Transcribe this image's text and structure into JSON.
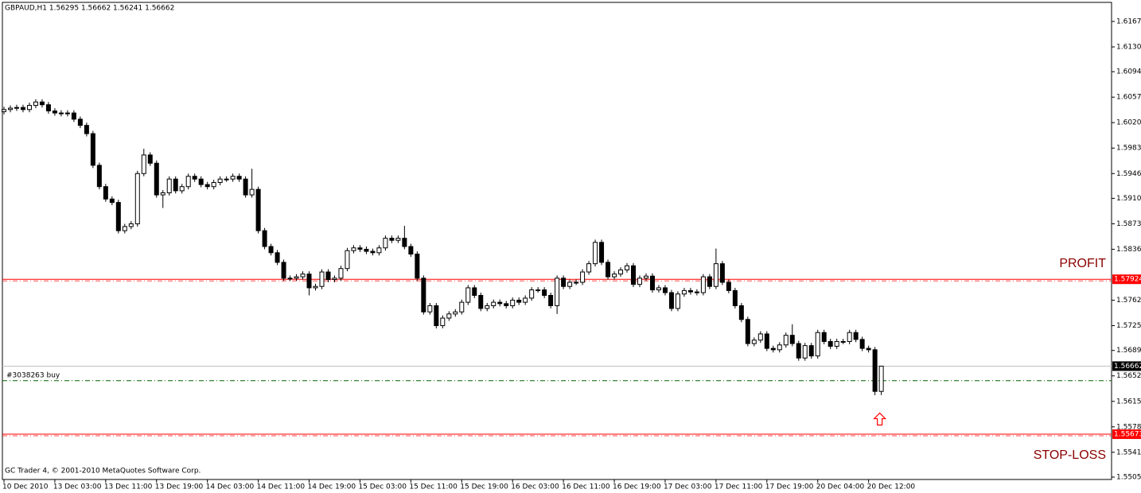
{
  "chart_data": {
    "type": "candlestick",
    "title": "GBPAUD,H1 1.56295 1.56662 1.56241 1.56662",
    "copyright": "GC Trader 4, © 2001-2010 MetaQuotes Software Corp.",
    "up_color": "#ffffff",
    "down_color": "#000000",
    "ylim": [
      1.55015,
      1.61947
    ],
    "yticks": [
      {
        "value": 1.6167,
        "label": "1.61670"
      },
      {
        "value": 1.613,
        "label": "1.61300"
      },
      {
        "value": 1.6094,
        "label": "1.60940"
      },
      {
        "value": 1.6057,
        "label": "1.60570"
      },
      {
        "value": 1.602,
        "label": "1.60200"
      },
      {
        "value": 1.5983,
        "label": "1.59830"
      },
      {
        "value": 1.5946,
        "label": "1.59460"
      },
      {
        "value": 1.591,
        "label": "1.59100"
      },
      {
        "value": 1.5873,
        "label": "1.58730"
      },
      {
        "value": 1.5836,
        "label": "1.58360"
      },
      {
        "value": 1.5762,
        "label": "1.57620"
      },
      {
        "value": 1.5725,
        "label": "1.57250"
      },
      {
        "value": 1.5689,
        "label": "1.56890"
      },
      {
        "value": 1.5652,
        "label": "1.56520"
      },
      {
        "value": 1.5615,
        "label": "1.56150"
      },
      {
        "value": 1.5578,
        "label": "1.55780"
      },
      {
        "value": 1.5541,
        "label": "1.55410"
      },
      {
        "value": 1.5505,
        "label": "1.55050"
      }
    ],
    "categories": [
      "10 Dec 2010",
      null,
      null,
      null,
      null,
      null,
      null,
      null,
      "13 Dec 03:00",
      null,
      null,
      null,
      null,
      null,
      null,
      null,
      "13 Dec 11:00",
      null,
      null,
      null,
      null,
      null,
      null,
      null,
      "13 Dec 19:00",
      null,
      null,
      null,
      null,
      null,
      null,
      null,
      "14 Dec 03:00",
      null,
      null,
      null,
      null,
      null,
      null,
      null,
      "14 Dec 11:00",
      null,
      null,
      null,
      null,
      null,
      null,
      null,
      "14 Dec 19:00",
      null,
      null,
      null,
      null,
      null,
      null,
      null,
      "15 Dec 03:00",
      null,
      null,
      null,
      null,
      null,
      null,
      null,
      "15 Dec 11:00",
      null,
      null,
      null,
      null,
      null,
      null,
      null,
      "15 Dec 19:00",
      null,
      null,
      null,
      null,
      null,
      null,
      null,
      "16 Dec 03:00",
      null,
      null,
      null,
      null,
      null,
      null,
      null,
      "16 Dec 11:00",
      null,
      null,
      null,
      null,
      null,
      null,
      null,
      "16 Dec 19:00",
      null,
      null,
      null,
      null,
      null,
      null,
      null,
      "17 Dec 03:00",
      null,
      null,
      null,
      null,
      null,
      null,
      null,
      "17 Dec 11:00",
      null,
      null,
      null,
      null,
      null,
      null,
      null,
      "17 Dec 19:00",
      null,
      null,
      null,
      null,
      null,
      null,
      null,
      "20 Dec 04:00",
      null,
      null,
      null,
      null,
      null,
      null,
      null,
      "20 Dec 12:00",
      null,
      null
    ],
    "open": [
      1.6036,
      1.6039,
      1.6041,
      1.6042,
      1.6039,
      1.6045,
      1.605,
      1.6046,
      1.6037,
      1.6034,
      1.6033,
      1.6034,
      1.6025,
      1.6016,
      1.6004,
      1.5958,
      1.5927,
      1.5909,
      1.5904,
      1.5863,
      1.5869,
      1.5873,
      1.5946,
      1.5973,
      1.5961,
      1.5915,
      1.5918,
      1.5938,
      1.5921,
      1.5927,
      1.5942,
      1.5938,
      1.593,
      1.5927,
      1.5933,
      1.5938,
      1.5938,
      1.5942,
      1.5938,
      1.5915,
      1.5923,
      1.5863,
      1.584,
      1.5831,
      1.5817,
      1.5794,
      1.5794,
      1.5796,
      1.58,
      1.578,
      1.5782,
      1.5803,
      1.5792,
      1.5794,
      1.5808,
      1.5834,
      1.5838,
      1.5836,
      1.5833,
      1.5831,
      1.5838,
      1.5852,
      1.5849,
      1.5852,
      1.584,
      1.5829,
      1.5794,
      1.5745,
      1.5754,
      1.5725,
      1.5736,
      1.5742,
      1.5745,
      1.5759,
      1.578,
      1.5769,
      1.575,
      1.5754,
      1.5759,
      1.5757,
      1.5754,
      1.5762,
      1.5759,
      1.5765,
      1.5777,
      1.5777,
      1.5769,
      1.5754,
      1.5794,
      1.5782,
      1.5788,
      1.5788,
      1.5803,
      1.5815,
      1.5846,
      1.5817,
      1.5796,
      1.58,
      1.5806,
      1.5812,
      1.5785,
      1.5794,
      1.5797,
      1.5777,
      1.578,
      1.5773,
      1.575,
      1.5771,
      1.5776,
      1.5774,
      1.5773,
      1.5796,
      1.5782,
      1.5815,
      1.5788,
      1.5776,
      1.5754,
      1.5734,
      1.5699,
      1.5704,
      1.5713,
      1.5692,
      1.569,
      1.5697,
      1.5711,
      1.5699,
      1.5678,
      1.5696,
      1.5681,
      1.5715,
      1.5702,
      1.5695,
      1.5702,
      1.5702,
      1.5715,
      1.5705,
      1.5692,
      1.569,
      1.56295
    ],
    "high": [
      1.6043,
      1.6045,
      1.6046,
      1.6046,
      1.6049,
      1.6054,
      1.6054,
      1.605,
      1.6041,
      1.6038,
      1.6038,
      1.6038,
      1.6029,
      1.602,
      1.6008,
      1.5962,
      1.5931,
      1.5913,
      1.5908,
      1.5873,
      1.5877,
      1.595,
      1.5982,
      1.5977,
      1.5965,
      1.5922,
      1.5942,
      1.5942,
      1.5931,
      1.5946,
      1.5946,
      1.5942,
      1.5934,
      1.5937,
      1.5942,
      1.5942,
      1.5946,
      1.5946,
      1.5942,
      1.5953,
      1.5927,
      1.5867,
      1.5844,
      1.5835,
      1.5821,
      1.5798,
      1.58,
      1.5804,
      1.5804,
      1.5786,
      1.5807,
      1.5807,
      1.5798,
      1.5812,
      1.5838,
      1.5842,
      1.5842,
      1.584,
      1.5837,
      1.5842,
      1.5856,
      1.5856,
      1.5856,
      1.587,
      1.5844,
      1.5833,
      1.5798,
      1.5758,
      1.5758,
      1.574,
      1.5746,
      1.5749,
      1.5763,
      1.5784,
      1.5784,
      1.5773,
      1.5758,
      1.5763,
      1.5763,
      1.5761,
      1.5766,
      1.5766,
      1.5769,
      1.5781,
      1.5781,
      1.5781,
      1.5773,
      1.5798,
      1.5798,
      1.5792,
      1.5792,
      1.5807,
      1.5819,
      1.585,
      1.585,
      1.5821,
      1.5804,
      1.581,
      1.5816,
      1.5816,
      1.5798,
      1.5801,
      1.5801,
      1.5784,
      1.5784,
      1.5777,
      1.5775,
      1.578,
      1.578,
      1.5778,
      1.58,
      1.58,
      1.5837,
      1.5819,
      1.5792,
      1.578,
      1.5758,
      1.5738,
      1.5708,
      1.5717,
      1.5717,
      1.5696,
      1.5701,
      1.5715,
      1.5727,
      1.5703,
      1.57,
      1.57,
      1.5719,
      1.5719,
      1.5706,
      1.5706,
      1.5706,
      1.5719,
      1.5719,
      1.5709,
      1.5696,
      1.5694,
      1.56662
    ],
    "low": [
      1.6032,
      1.6035,
      1.6037,
      1.6035,
      1.6035,
      1.6041,
      1.6042,
      1.6033,
      1.603,
      1.6029,
      1.6029,
      1.6021,
      1.6012,
      1.6,
      1.5954,
      1.5923,
      1.5905,
      1.59,
      1.5859,
      1.5859,
      1.5865,
      1.5869,
      1.5942,
      1.5957,
      1.5911,
      1.5896,
      1.5914,
      1.5917,
      1.5917,
      1.5923,
      1.5934,
      1.5926,
      1.5923,
      1.5923,
      1.5929,
      1.5934,
      1.5934,
      1.5934,
      1.5911,
      1.5911,
      1.5859,
      1.5836,
      1.5827,
      1.5813,
      1.579,
      1.579,
      1.579,
      1.5792,
      1.5769,
      1.5776,
      1.5778,
      1.5788,
      1.5788,
      1.579,
      1.5804,
      1.583,
      1.5832,
      1.5829,
      1.5827,
      1.5827,
      1.5834,
      1.5845,
      1.5845,
      1.5836,
      1.5825,
      1.579,
      1.5741,
      1.5741,
      1.5721,
      1.5721,
      1.5732,
      1.5738,
      1.5741,
      1.5755,
      1.5765,
      1.5746,
      1.5746,
      1.575,
      1.5753,
      1.575,
      1.575,
      1.5755,
      1.5755,
      1.5761,
      1.5773,
      1.5765,
      1.575,
      1.5742,
      1.5778,
      1.5778,
      1.5784,
      1.5784,
      1.5799,
      1.5811,
      1.5813,
      1.5792,
      1.5792,
      1.5796,
      1.5802,
      1.5781,
      1.5781,
      1.579,
      1.5773,
      1.5773,
      1.5769,
      1.5746,
      1.5746,
      1.5767,
      1.577,
      1.5769,
      1.5769,
      1.5778,
      1.5778,
      1.5784,
      1.5772,
      1.575,
      1.573,
      1.5695,
      1.5695,
      1.57,
      1.5688,
      1.5686,
      1.5686,
      1.5693,
      1.5695,
      1.5674,
      1.5674,
      1.5677,
      1.5677,
      1.5698,
      1.5691,
      1.5691,
      1.5698,
      1.5698,
      1.5701,
      1.5688,
      1.5686,
      1.5624,
      1.56241
    ],
    "close": [
      1.6039,
      1.6041,
      1.6042,
      1.6039,
      1.6045,
      1.605,
      1.6046,
      1.6037,
      1.6034,
      1.6033,
      1.6034,
      1.6025,
      1.6016,
      1.6004,
      1.5958,
      1.5927,
      1.5909,
      1.5904,
      1.5863,
      1.5869,
      1.5873,
      1.5946,
      1.5973,
      1.5961,
      1.5915,
      1.5918,
      1.5938,
      1.5921,
      1.5927,
      1.5942,
      1.5938,
      1.593,
      1.5927,
      1.5933,
      1.5938,
      1.5938,
      1.5942,
      1.5938,
      1.5915,
      1.5923,
      1.5863,
      1.584,
      1.5831,
      1.5817,
      1.5794,
      1.5794,
      1.5796,
      1.58,
      1.578,
      1.5782,
      1.5803,
      1.5792,
      1.5794,
      1.5808,
      1.5834,
      1.5838,
      1.5836,
      1.5833,
      1.5831,
      1.5838,
      1.5852,
      1.5849,
      1.5852,
      1.584,
      1.5829,
      1.5794,
      1.5745,
      1.5754,
      1.5725,
      1.5736,
      1.5742,
      1.5745,
      1.5759,
      1.578,
      1.5769,
      1.575,
      1.5754,
      1.5759,
      1.5757,
      1.5754,
      1.5762,
      1.5759,
      1.5765,
      1.5777,
      1.5777,
      1.5769,
      1.5754,
      1.5794,
      1.5782,
      1.5788,
      1.5788,
      1.5803,
      1.5815,
      1.5846,
      1.5817,
      1.5796,
      1.58,
      1.5806,
      1.5812,
      1.5785,
      1.5794,
      1.5797,
      1.5777,
      1.578,
      1.5773,
      1.575,
      1.5771,
      1.5776,
      1.5774,
      1.5773,
      1.5796,
      1.5782,
      1.5815,
      1.5788,
      1.5776,
      1.5754,
      1.5734,
      1.5699,
      1.5704,
      1.5713,
      1.5692,
      1.569,
      1.5697,
      1.5711,
      1.5699,
      1.5678,
      1.5696,
      1.5681,
      1.5715,
      1.5702,
      1.5695,
      1.5702,
      1.5702,
      1.5715,
      1.5705,
      1.5692,
      1.569,
      1.56295,
      1.56662
    ],
    "take_profit": {
      "label": "PROFIT",
      "value": 1.57924,
      "color": "#ff0000",
      "text_color": "#8b0000"
    },
    "stop_loss": {
      "label": "STOP-LOSS",
      "value": 1.55673,
      "color": "#ff0000",
      "text_color": "#8b0000"
    },
    "order": {
      "label": "#3038263 buy",
      "value": 1.5645,
      "color": "#006400"
    },
    "bid": {
      "value": 1.56662,
      "color": "#c0c0c0"
    },
    "arrow": {
      "value": 1.5598,
      "color": "#ff0000"
    }
  }
}
